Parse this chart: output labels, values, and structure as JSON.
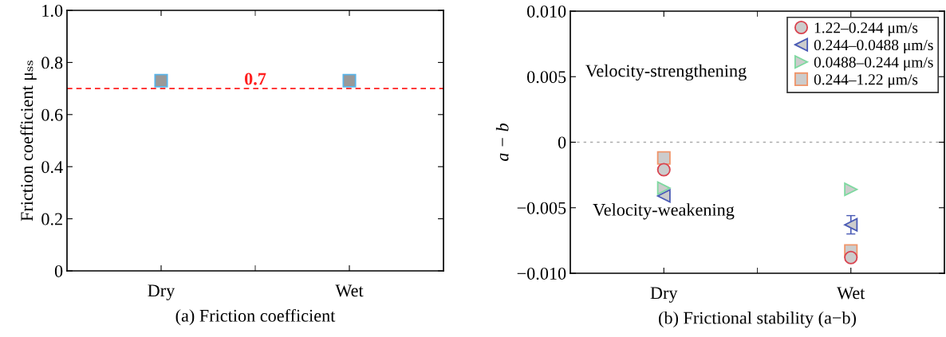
{
  "chart_data": [
    {
      "type": "scatter",
      "xlabel": "(a) Friction coefficient",
      "ylabel": "Friction coefficient μₛₛ",
      "categories": [
        "Dry",
        "Wet"
      ],
      "series": [
        {
          "color": "#5ab4e8",
          "marker": "square",
          "values": [
            0.73,
            0.73
          ]
        }
      ],
      "ylim": [
        0,
        1.0
      ],
      "yticks": [
        0,
        0.2,
        0.4,
        0.6,
        0.8,
        {
          "value": 1.0,
          "label": "1.0"
        }
      ],
      "ref_lines": [
        {
          "axis": "y",
          "value": 0.7,
          "label": "0.7",
          "color": "#ff2020",
          "line_style": "dashed"
        }
      ],
      "grid": false,
      "legend": false
    },
    {
      "type": "scatter",
      "xlabel": "(b) Frictional stability (a−b)",
      "ylabel": "a − b",
      "categories": [
        "Dry",
        "Wet"
      ],
      "series": [
        {
          "name": "1.22–0.244 μm/s",
          "color": "#d9434f",
          "marker": "circle",
          "values": [
            -0.0021,
            -0.0088
          ]
        },
        {
          "name": "0.244–0.0488 μm/s",
          "color": "#4a5bb5",
          "marker": "triangle-left",
          "values": [
            -0.0041,
            -0.0063
          ],
          "errors": [
            null,
            0.0007
          ]
        },
        {
          "name": "0.0488–0.244 μm/s",
          "color": "#7ed9a0",
          "marker": "triangle-right",
          "values": [
            -0.0035,
            -0.0036
          ]
        },
        {
          "name": "0.244–1.22 μm/s",
          "color": "#f0956a",
          "marker": "square",
          "values": [
            -0.0012,
            -0.0083
          ]
        }
      ],
      "ylim": [
        -0.01,
        0.01
      ],
      "yticks": [
        {
          "value": -0.01,
          "label": "−0.010"
        },
        {
          "value": -0.005,
          "label": "−0.005"
        },
        0,
        {
          "value": 0.005,
          "label": "0.005"
        },
        {
          "value": 0.01,
          "label": "0.010"
        }
      ],
      "ref_lines": [
        {
          "axis": "y",
          "value": 0,
          "label": null,
          "color": "#aaaaaa",
          "line_style": "dotted"
        }
      ],
      "annotations": [
        "Velocity-strengthening",
        "Velocity-weakening"
      ],
      "grid": false,
      "legend": "top right"
    }
  ]
}
